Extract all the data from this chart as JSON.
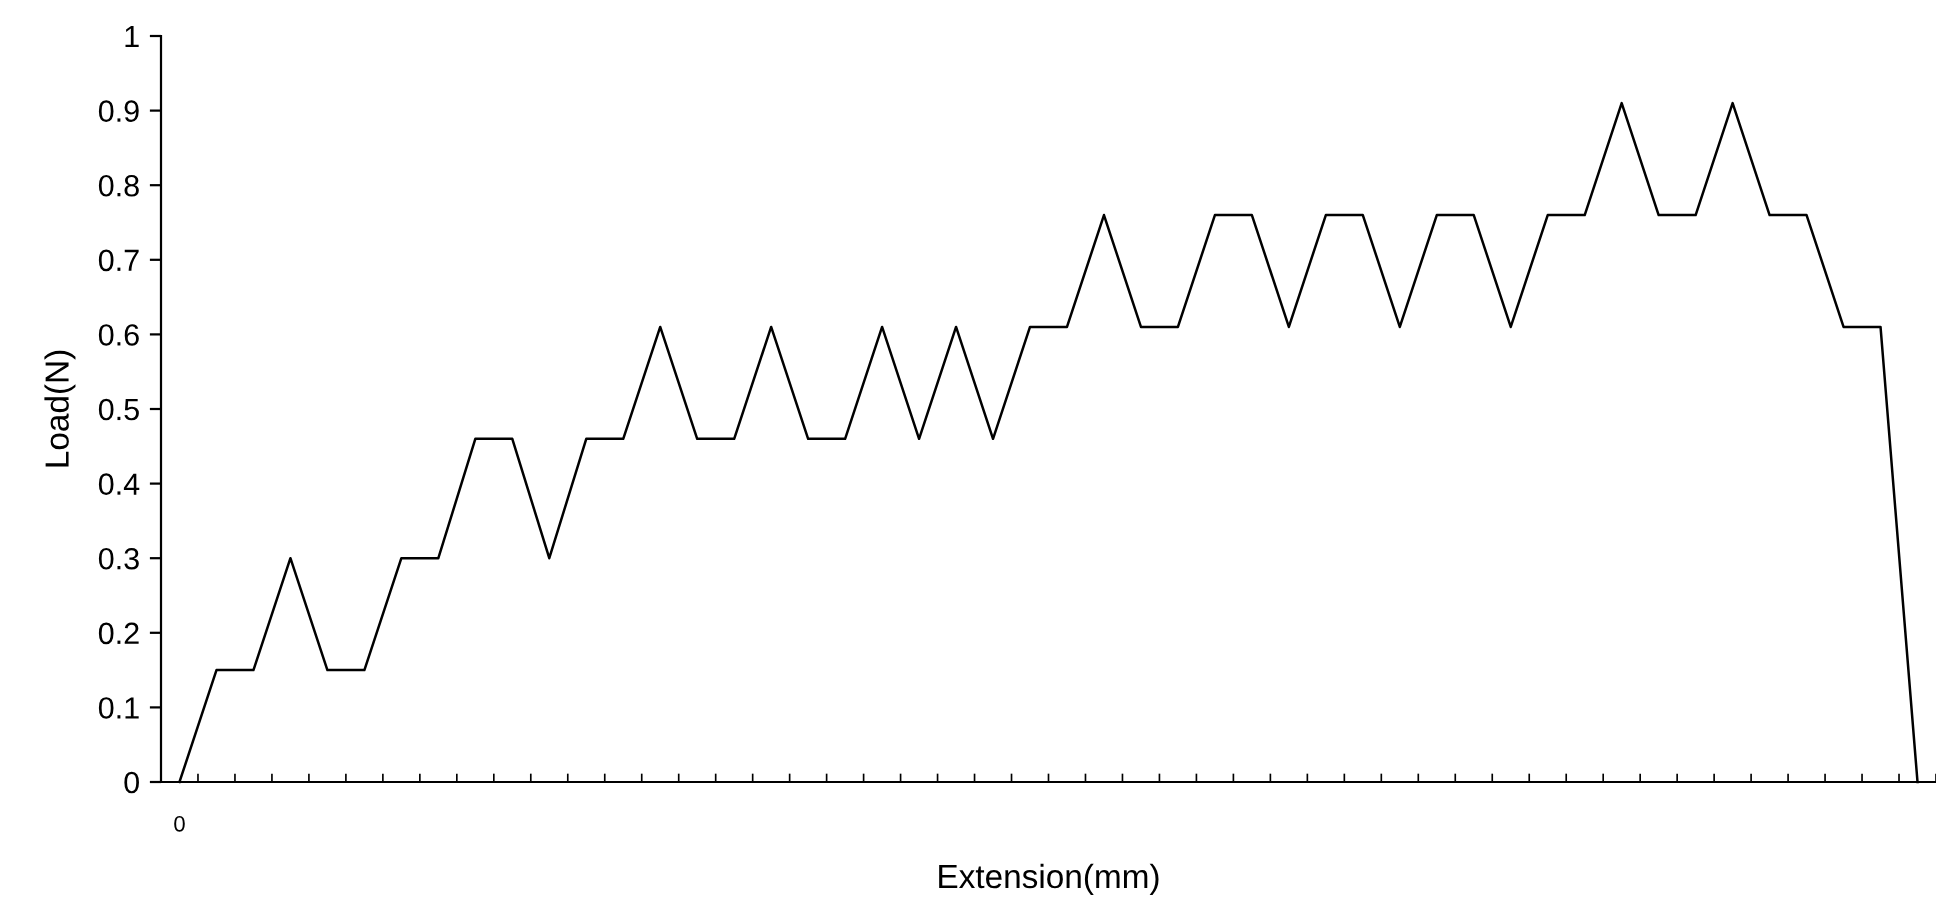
{
  "chart_data": {
    "type": "line",
    "xlabel": "Extension(mm)",
    "ylabel": "Load(N)",
    "categories": [
      "0",
      null,
      null,
      null,
      null,
      null,
      null,
      null,
      null,
      null,
      null,
      null,
      null,
      null,
      null,
      null,
      null,
      null,
      null,
      null,
      null,
      null,
      null,
      null,
      null,
      null,
      null,
      null,
      null,
      null,
      null,
      null,
      null,
      null,
      null,
      null,
      null,
      null,
      null,
      null,
      null,
      null,
      null,
      null,
      null,
      null,
      null,
      null
    ],
    "series": [
      {
        "color": "#000000",
        "values": [
          0,
          0.15,
          0.15,
          0.3,
          0.15,
          0.15,
          0.3,
          0.3,
          0.46,
          0.46,
          0.3,
          0.46,
          0.46,
          0.61,
          0.46,
          0.46,
          0.61,
          0.46,
          0.46,
          0.61,
          0.46,
          0.61,
          0.46,
          0.61,
          0.61,
          0.76,
          0.61,
          0.61,
          0.76,
          0.76,
          0.61,
          0.76,
          0.76,
          0.61,
          0.76,
          0.76,
          0.61,
          0.76,
          0.76,
          0.91,
          0.76,
          0.76,
          0.91,
          0.76,
          0.76,
          0.61,
          0.61,
          0
        ]
      }
    ],
    "ylim": [
      0,
      1
    ],
    "yticks": [
      0,
      0.1,
      0.2,
      0.3,
      0.4,
      0.5,
      0.6,
      0.7,
      0.8,
      0.9,
      1
    ],
    "grid": false,
    "marker": "none",
    "line_style": "solid"
  }
}
